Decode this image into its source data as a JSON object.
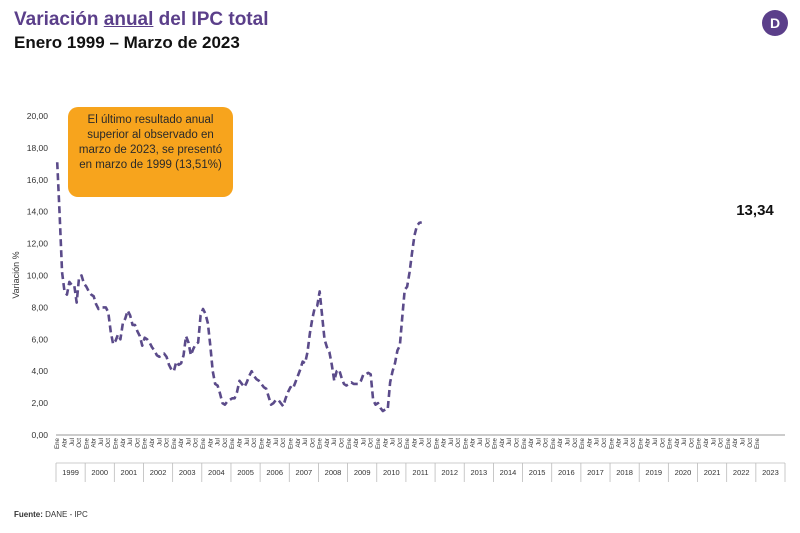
{
  "title": {
    "part1": "Variación ",
    "part2": "anual",
    "part3": " del IPC total",
    "subtitle": "Enero 1999 – Marzo de 2023"
  },
  "logo_letter": "D",
  "callout": "El último resultado anual superior al observado en marzo de 2023, se presentó en marzo de 1999 (13,51%)",
  "source": {
    "label": "Fuente:",
    "text": " DANE - IPC"
  },
  "colors": {
    "line": "#5b4b8a",
    "callout": "#f7a41d",
    "brand": "#5b3f8a"
  },
  "chart_data": {
    "type": "line",
    "title": "Variación anual del IPC total",
    "subtitle": "Enero 1999 – Marzo de 2023",
    "xlabel": "",
    "ylabel": "Variación %",
    "ylim": [
      0,
      20
    ],
    "yticks": [
      "0,00",
      "2,00",
      "4,00",
      "6,00",
      "8,00",
      "10,00",
      "12,00",
      "14,00",
      "16,00",
      "18,00",
      "20,00"
    ],
    "years": [
      "1999",
      "2000",
      "2001",
      "2002",
      "2003",
      "2004",
      "2005",
      "2006",
      "2007",
      "2008",
      "2009",
      "2010",
      "2011",
      "2012",
      "2013",
      "2014",
      "2015",
      "2016",
      "2017",
      "2018",
      "2019",
      "2020",
      "2021",
      "2022",
      "2023"
    ],
    "quarter_labels": [
      "Ene",
      "Abr",
      "Jul",
      "Oct"
    ],
    "line_style": "dashed",
    "end_label": "13,34",
    "series": [
      {
        "name": "Variación anual del IPC",
        "values": [
          17.1,
          13.8,
          10.2,
          9.0,
          8.8,
          9.6,
          9.4,
          9.4,
          8.3,
          9.9,
          10.0,
          9.5,
          9.3,
          9.0,
          8.8,
          8.7,
          8.2,
          7.9,
          8.0,
          8.0,
          8.0,
          7.7,
          6.5,
          5.7,
          5.9,
          6.3,
          6.0,
          7.0,
          7.3,
          7.8,
          7.5,
          6.9,
          6.9,
          6.5,
          6.2,
          5.6,
          6.1,
          6.0,
          5.8,
          5.5,
          5.3,
          5.0,
          4.9,
          5.0,
          5.1,
          4.9,
          4.4,
          4.1,
          4.0,
          4.6,
          4.4,
          4.5,
          5.0,
          6.2,
          5.8,
          5.0,
          5.4,
          5.7,
          5.8,
          7.5,
          7.9,
          7.6,
          7.0,
          5.6,
          4.0,
          3.2,
          3.1,
          2.6,
          2.0,
          1.9,
          2.1,
          2.2,
          2.3,
          2.3,
          2.7,
          3.4,
          3.2,
          3.0,
          3.3,
          3.7,
          4.0,
          3.7,
          3.5,
          3.4,
          3.2,
          3.0,
          2.9,
          2.4,
          1.9,
          2.0,
          2.2,
          2.2,
          2.0,
          1.8,
          2.3,
          2.7,
          3.0,
          2.9,
          3.3,
          3.7,
          4.1,
          4.6,
          4.5,
          5.2,
          6.4,
          7.3,
          8.0,
          8.1,
          9.0,
          7.5,
          6.0,
          5.5,
          5.2,
          4.4,
          3.4,
          4.0,
          4.1,
          3.6,
          3.2,
          3.1,
          3.2,
          3.3,
          3.2,
          3.2,
          3.2,
          3.4,
          3.8,
          3.8,
          3.9,
          3.8,
          2.2,
          1.9,
          2.0,
          1.7,
          1.5,
          1.6,
          1.6,
          3.3,
          4.0,
          4.5,
          5.3,
          5.6,
          7.4,
          9.1,
          9.3,
          10.2,
          11.4,
          12.5,
          13.1,
          13.3,
          13.34
        ]
      }
    ]
  }
}
